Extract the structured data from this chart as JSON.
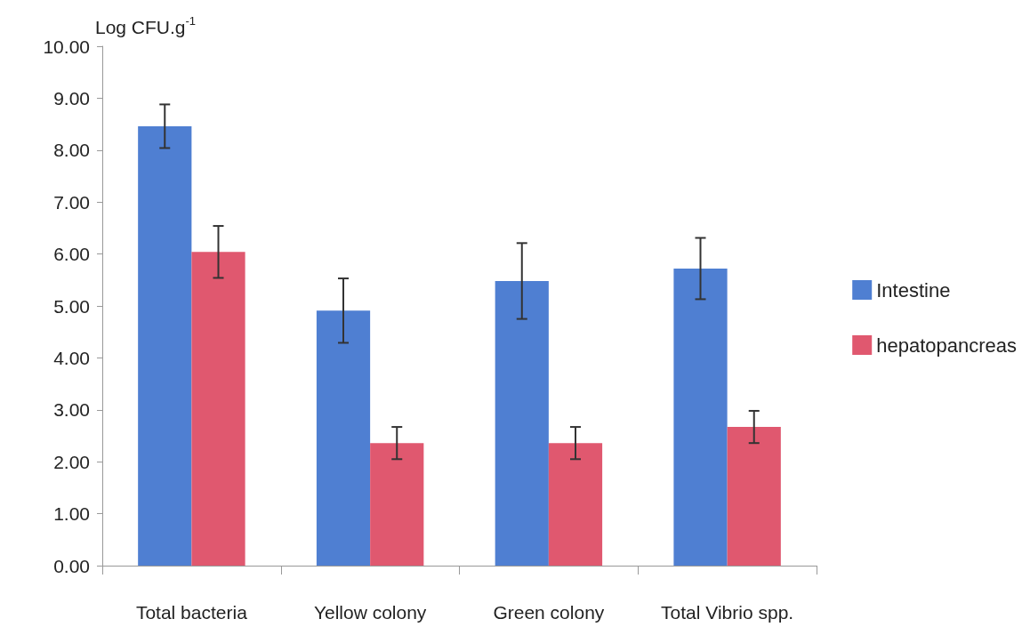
{
  "chart_data": {
    "type": "bar",
    "ylabel": "Log CFU.g$^{-1}$",
    "categories": [
      "Total bacteria",
      "Yellow colony",
      "Green colony",
      "Total Vibrio spp."
    ],
    "series": [
      {
        "name": "Intestine",
        "color": "#4f7fd2",
        "values": [
          8.46,
          4.91,
          5.48,
          5.72
        ],
        "errors": [
          0.42,
          0.62,
          0.73,
          0.59
        ]
      },
      {
        "name": "hepatopancreas",
        "color": "#e0586f",
        "values": [
          6.04,
          2.36,
          2.36,
          2.67
        ],
        "errors": [
          0.5,
          0.31,
          0.31,
          0.31
        ]
      }
    ],
    "ylim": [
      0,
      10
    ],
    "yticks": [
      {
        "value": 0,
        "label": "0.00"
      },
      {
        "value": 1,
        "label": "1.00"
      },
      {
        "value": 2,
        "label": "2.00"
      },
      {
        "value": 3,
        "label": "3.00"
      },
      {
        "value": 4,
        "label": "4.00"
      },
      {
        "value": 5,
        "label": "5.00"
      },
      {
        "value": 6,
        "label": "6.00"
      },
      {
        "value": 7,
        "label": "7.00"
      },
      {
        "value": 8,
        "label": "8.00"
      },
      {
        "value": 9,
        "label": "9.00"
      },
      {
        "value": 10,
        "label": "10.00"
      }
    ],
    "grid": false,
    "legend": "right"
  }
}
